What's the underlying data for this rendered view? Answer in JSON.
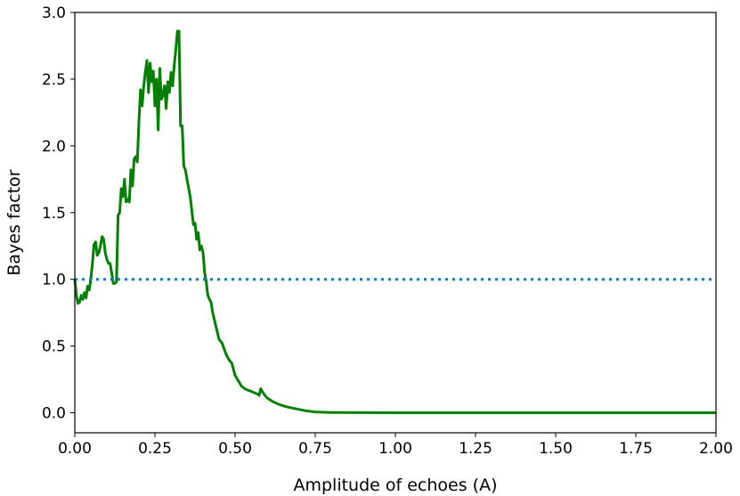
{
  "chart_data": {
    "type": "line",
    "title": "",
    "xlabel": "Amplitude of echoes (A)",
    "ylabel": "Bayes factor",
    "xlim": [
      0.0,
      2.0
    ],
    "ylim": [
      -0.15,
      3.0
    ],
    "grid": false,
    "x_ticks": [
      0.0,
      0.25,
      0.5,
      0.75,
      1.0,
      1.25,
      1.5,
      1.75,
      2.0
    ],
    "x_tick_labels": [
      "0.00",
      "0.25",
      "0.50",
      "0.75",
      "1.00",
      "1.25",
      "1.50",
      "1.75",
      "2.00"
    ],
    "y_ticks": [
      0.0,
      0.5,
      1.0,
      1.5,
      2.0,
      2.5,
      3.0
    ],
    "y_tick_labels": [
      "0.0",
      "0.5",
      "1.0",
      "1.5",
      "2.0",
      "2.5",
      "3.0"
    ],
    "series": [
      {
        "style": "solid",
        "color": "#008000",
        "x": [
          0.0,
          0.005,
          0.01,
          0.015,
          0.02,
          0.025,
          0.03,
          0.035,
          0.04,
          0.045,
          0.05,
          0.055,
          0.06,
          0.065,
          0.07,
          0.075,
          0.08,
          0.085,
          0.09,
          0.095,
          0.1,
          0.105,
          0.11,
          0.115,
          0.12,
          0.125,
          0.13,
          0.135,
          0.14,
          0.145,
          0.15,
          0.155,
          0.16,
          0.165,
          0.17,
          0.175,
          0.18,
          0.185,
          0.19,
          0.195,
          0.2,
          0.205,
          0.21,
          0.215,
          0.22,
          0.225,
          0.23,
          0.235,
          0.24,
          0.245,
          0.25,
          0.255,
          0.26,
          0.265,
          0.27,
          0.275,
          0.28,
          0.285,
          0.29,
          0.295,
          0.3,
          0.305,
          0.31,
          0.315,
          0.32,
          0.325,
          0.33,
          0.335,
          0.34,
          0.345,
          0.35,
          0.36,
          0.37,
          0.375,
          0.38,
          0.385,
          0.39,
          0.395,
          0.4,
          0.405,
          0.41,
          0.415,
          0.42,
          0.425,
          0.43,
          0.44,
          0.45,
          0.46,
          0.47,
          0.48,
          0.49,
          0.5,
          0.51,
          0.52,
          0.53,
          0.54,
          0.55,
          0.56,
          0.57,
          0.575,
          0.58,
          0.59,
          0.6,
          0.62,
          0.64,
          0.66,
          0.68,
          0.7,
          0.72,
          0.75,
          0.8,
          0.9,
          1.0,
          1.25,
          1.5,
          1.75,
          2.0
        ],
        "y": [
          1.0,
          0.88,
          0.82,
          0.83,
          0.88,
          0.85,
          0.9,
          0.86,
          0.95,
          0.92,
          1.0,
          1.12,
          1.26,
          1.28,
          1.18,
          1.2,
          1.25,
          1.32,
          1.3,
          1.2,
          1.15,
          1.12,
          1.12,
          1.05,
          0.97,
          0.97,
          0.98,
          1.48,
          1.5,
          1.68,
          1.62,
          1.75,
          1.58,
          1.6,
          1.58,
          1.82,
          1.7,
          1.9,
          1.92,
          1.88,
          2.18,
          2.42,
          2.3,
          2.45,
          2.55,
          2.64,
          2.4,
          2.62,
          2.48,
          2.56,
          2.3,
          2.5,
          2.12,
          2.58,
          2.35,
          2.38,
          2.45,
          2.28,
          2.48,
          2.4,
          2.55,
          2.45,
          2.6,
          2.72,
          2.86,
          2.86,
          2.15,
          2.15,
          1.85,
          1.82,
          1.75,
          1.62,
          1.41,
          1.42,
          1.3,
          1.35,
          1.22,
          1.25,
          1.2,
          1.05,
          0.98,
          0.88,
          0.85,
          0.83,
          0.75,
          0.65,
          0.55,
          0.52,
          0.45,
          0.4,
          0.37,
          0.28,
          0.24,
          0.2,
          0.18,
          0.17,
          0.16,
          0.15,
          0.14,
          0.13,
          0.18,
          0.14,
          0.11,
          0.08,
          0.06,
          0.045,
          0.035,
          0.025,
          0.015,
          0.006,
          0.002,
          0.001,
          0.0,
          0.0,
          0.0,
          0.0,
          0.0
        ]
      },
      {
        "style": "dotted",
        "color": "#1f77b4",
        "x": [
          0.0,
          2.0
        ],
        "y": [
          1.0,
          1.0
        ]
      }
    ]
  }
}
